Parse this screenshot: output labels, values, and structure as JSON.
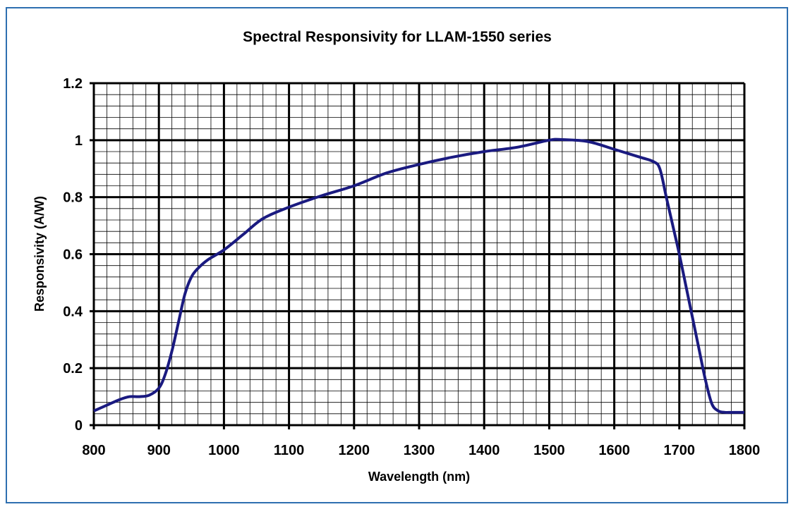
{
  "chart_data": {
    "type": "line",
    "title": "Spectral Responsivity for LLAM-1550 series",
    "xlabel": "Wavelength (nm)",
    "ylabel": "Responsivity (A/W)",
    "xlim": [
      800,
      1800
    ],
    "ylim": [
      0,
      1.2
    ],
    "x_ticks": [
      "800",
      "900",
      "1000",
      "1100",
      "1200",
      "1300",
      "1400",
      "1500",
      "1600",
      "1700",
      "1800"
    ],
    "y_ticks": [
      "0",
      "0.2",
      "0.4",
      "0.6",
      "0.8",
      "1",
      "1.2"
    ],
    "grid": true,
    "series": [
      {
        "color": "#1a1a80",
        "x": [
          800,
          820,
          840,
          855,
          870,
          885,
          900,
          910,
          920,
          930,
          940,
          950,
          960,
          975,
          1000,
          1030,
          1060,
          1100,
          1150,
          1200,
          1250,
          1300,
          1350,
          1400,
          1450,
          1500,
          1520,
          1560,
          1600,
          1640,
          1660,
          1670,
          1680,
          1690,
          1700,
          1710,
          1720,
          1730,
          1740,
          1750,
          1760,
          1770,
          1780,
          1790,
          1800
        ],
        "y": [
          0.05,
          0.07,
          0.09,
          0.1,
          0.1,
          0.105,
          0.13,
          0.18,
          0.26,
          0.36,
          0.46,
          0.52,
          0.55,
          0.58,
          0.615,
          0.67,
          0.725,
          0.765,
          0.805,
          0.84,
          0.885,
          0.915,
          0.94,
          0.96,
          0.975,
          1.0,
          1.002,
          0.995,
          0.968,
          0.94,
          0.925,
          0.9,
          0.8,
          0.7,
          0.6,
          0.49,
          0.38,
          0.27,
          0.16,
          0.075,
          0.05,
          0.045,
          0.045,
          0.045,
          0.045
        ]
      }
    ]
  }
}
